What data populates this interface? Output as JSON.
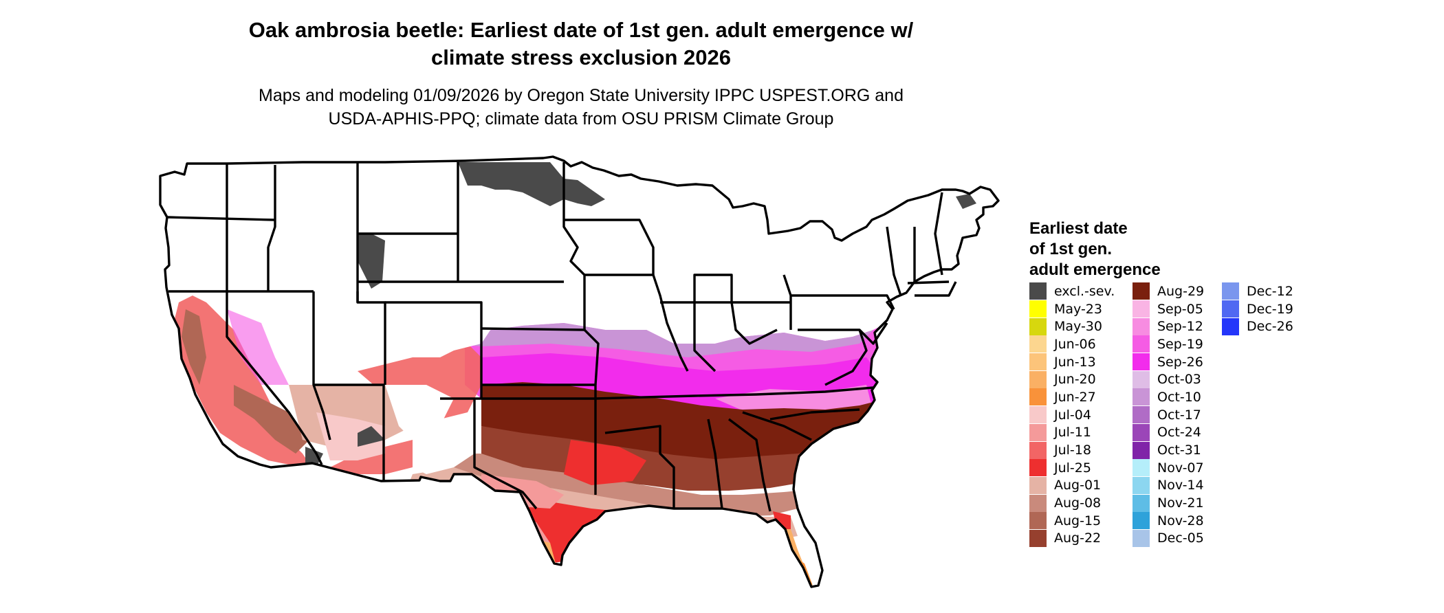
{
  "title_line1": "Oak ambrosia beetle: Earliest date of 1st gen. adult emergence w/",
  "title_line2": "climate stress exclusion 2026",
  "subtitle_line1": "Maps and modeling 01/09/2026 by Oregon State University IPPC USPEST.ORG and",
  "subtitle_line2": "USDA-APHIS-PPQ; climate data from OSU PRISM Climate Group",
  "legend": {
    "title_line1": "Earliest date",
    "title_line2": "of 1st gen.",
    "title_line3": "adult emergence",
    "columns": [
      [
        {
          "label": "excl.-sev.",
          "color": "#4a4a4a"
        },
        {
          "label": "May-23",
          "color": "#ffff00"
        },
        {
          "label": "May-30",
          "color": "#d7d70e"
        },
        {
          "label": "Jun-06",
          "color": "#fcd68f"
        },
        {
          "label": "Jun-13",
          "color": "#fcc47a"
        },
        {
          "label": "Jun-20",
          "color": "#fab064"
        },
        {
          "label": "Jun-27",
          "color": "#f9923a"
        },
        {
          "label": "Jul-04",
          "color": "#f8c9c9"
        },
        {
          "label": "Jul-11",
          "color": "#f49a9a"
        },
        {
          "label": "Jul-18",
          "color": "#f26565"
        },
        {
          "label": "Jul-25",
          "color": "#ee2f2f"
        },
        {
          "label": "Aug-01",
          "color": "#e5b3a5"
        },
        {
          "label": "Aug-08",
          "color": "#c98a7c"
        },
        {
          "label": "Aug-15",
          "color": "#b06755"
        },
        {
          "label": "Aug-22",
          "color": "#96402e"
        }
      ],
      [
        {
          "label": "Aug-29",
          "color": "#7a200e"
        },
        {
          "label": "Sep-05",
          "color": "#f9b4e4"
        },
        {
          "label": "Sep-12",
          "color": "#f78ce1"
        },
        {
          "label": "Sep-19",
          "color": "#f55ce4"
        },
        {
          "label": "Sep-26",
          "color": "#f22cec"
        },
        {
          "label": "Oct-03",
          "color": "#dfbde6"
        },
        {
          "label": "Oct-10",
          "color": "#c994d6"
        },
        {
          "label": "Oct-17",
          "color": "#b06cc6"
        },
        {
          "label": "Oct-24",
          "color": "#9b46b8"
        },
        {
          "label": "Oct-31",
          "color": "#8024a8"
        },
        {
          "label": "Nov-07",
          "color": "#b5eefa"
        },
        {
          "label": "Nov-14",
          "color": "#8cd6f0"
        },
        {
          "label": "Nov-21",
          "color": "#5ebde6"
        },
        {
          "label": "Nov-28",
          "color": "#2ea2da"
        },
        {
          "label": "Dec-05",
          "color": "#a8c4e8"
        }
      ],
      [
        {
          "label": "Dec-12",
          "color": "#7a96ee"
        },
        {
          "label": "Dec-19",
          "color": "#5068f2"
        },
        {
          "label": "Dec-26",
          "color": "#2436fa"
        }
      ]
    ]
  }
}
